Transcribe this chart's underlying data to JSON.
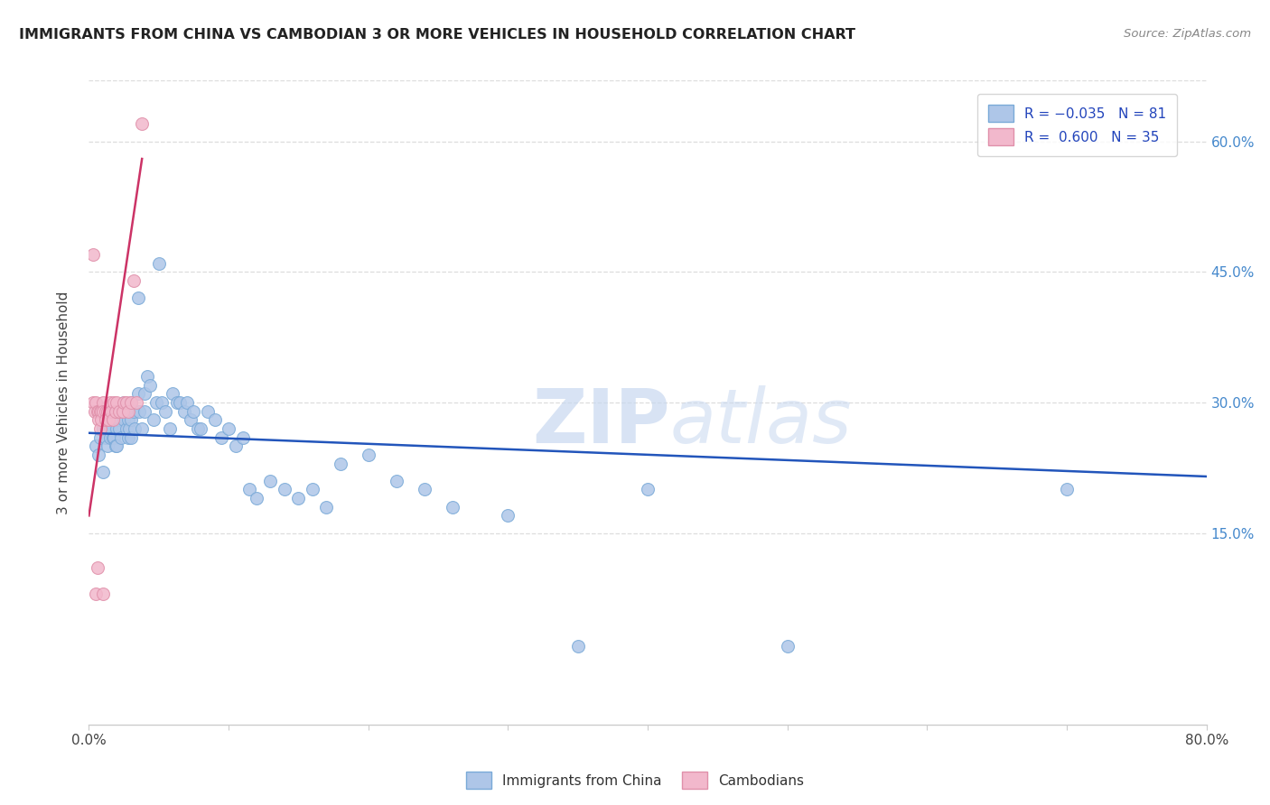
{
  "title": "IMMIGRANTS FROM CHINA VS CAMBODIAN 3 OR MORE VEHICLES IN HOUSEHOLD CORRELATION CHART",
  "source": "Source: ZipAtlas.com",
  "ylabel": "3 or more Vehicles in Household",
  "yticks_labels": [
    "15.0%",
    "30.0%",
    "45.0%",
    "60.0%"
  ],
  "ytick_vals": [
    0.15,
    0.3,
    0.45,
    0.6
  ],
  "xlim": [
    0.0,
    0.8
  ],
  "ylim": [
    -0.07,
    0.67
  ],
  "legend_entry1": "R = -0.035   N = 81",
  "legend_entry2": "R =  0.600   N = 35",
  "legend_label1": "Immigrants from China",
  "legend_label2": "Cambodians",
  "color_china": "#aec6e8",
  "color_cambodian": "#f2b8cc",
  "line_color_china": "#2255bb",
  "line_color_cambodian": "#cc3366",
  "watermark_zip": "ZIP",
  "watermark_atlas": "atlas",
  "china_R": -0.035,
  "cambodian_R": 0.6,
  "china_points_x": [
    0.005,
    0.007,
    0.008,
    0.01,
    0.01,
    0.012,
    0.012,
    0.013,
    0.015,
    0.015,
    0.015,
    0.016,
    0.017,
    0.018,
    0.018,
    0.019,
    0.02,
    0.02,
    0.02,
    0.021,
    0.022,
    0.022,
    0.023,
    0.025,
    0.025,
    0.026,
    0.027,
    0.028,
    0.028,
    0.029,
    0.03,
    0.03,
    0.03,
    0.032,
    0.033,
    0.035,
    0.035,
    0.036,
    0.038,
    0.04,
    0.04,
    0.042,
    0.044,
    0.046,
    0.048,
    0.05,
    0.052,
    0.055,
    0.058,
    0.06,
    0.063,
    0.065,
    0.068,
    0.07,
    0.073,
    0.075,
    0.078,
    0.08,
    0.085,
    0.09,
    0.095,
    0.1,
    0.105,
    0.11,
    0.115,
    0.12,
    0.13,
    0.14,
    0.15,
    0.16,
    0.17,
    0.18,
    0.2,
    0.22,
    0.24,
    0.26,
    0.3,
    0.35,
    0.4,
    0.5,
    0.7
  ],
  "china_points_y": [
    0.25,
    0.24,
    0.26,
    0.27,
    0.22,
    0.27,
    0.26,
    0.25,
    0.28,
    0.27,
    0.26,
    0.27,
    0.26,
    0.28,
    0.26,
    0.25,
    0.29,
    0.27,
    0.25,
    0.28,
    0.29,
    0.27,
    0.26,
    0.3,
    0.28,
    0.29,
    0.27,
    0.26,
    0.28,
    0.27,
    0.3,
    0.28,
    0.26,
    0.29,
    0.27,
    0.42,
    0.31,
    0.29,
    0.27,
    0.31,
    0.29,
    0.33,
    0.32,
    0.28,
    0.3,
    0.46,
    0.3,
    0.29,
    0.27,
    0.31,
    0.3,
    0.3,
    0.29,
    0.3,
    0.28,
    0.29,
    0.27,
    0.27,
    0.29,
    0.28,
    0.26,
    0.27,
    0.25,
    0.26,
    0.2,
    0.19,
    0.21,
    0.2,
    0.19,
    0.2,
    0.18,
    0.23,
    0.24,
    0.21,
    0.2,
    0.18,
    0.17,
    0.02,
    0.2,
    0.02,
    0.2
  ],
  "cambodian_points_x": [
    0.003,
    0.003,
    0.004,
    0.005,
    0.005,
    0.006,
    0.006,
    0.007,
    0.007,
    0.008,
    0.008,
    0.009,
    0.009,
    0.01,
    0.01,
    0.01,
    0.012,
    0.012,
    0.013,
    0.014,
    0.015,
    0.016,
    0.017,
    0.018,
    0.019,
    0.02,
    0.022,
    0.024,
    0.025,
    0.027,
    0.028,
    0.03,
    0.032,
    0.034,
    0.038
  ],
  "cambodian_points_y": [
    0.47,
    0.3,
    0.29,
    0.3,
    0.08,
    0.29,
    0.11,
    0.29,
    0.28,
    0.29,
    0.27,
    0.29,
    0.28,
    0.3,
    0.29,
    0.08,
    0.29,
    0.28,
    0.29,
    0.28,
    0.3,
    0.29,
    0.28,
    0.3,
    0.29,
    0.3,
    0.29,
    0.29,
    0.3,
    0.3,
    0.29,
    0.3,
    0.44,
    0.3,
    0.62
  ],
  "china_line_x": [
    0.0,
    0.8
  ],
  "china_line_y": [
    0.265,
    0.215
  ],
  "camb_line_x": [
    0.0,
    0.038
  ],
  "camb_line_y": [
    0.17,
    0.58
  ],
  "grid_color": "#dddddd",
  "spine_color": "#cccccc"
}
